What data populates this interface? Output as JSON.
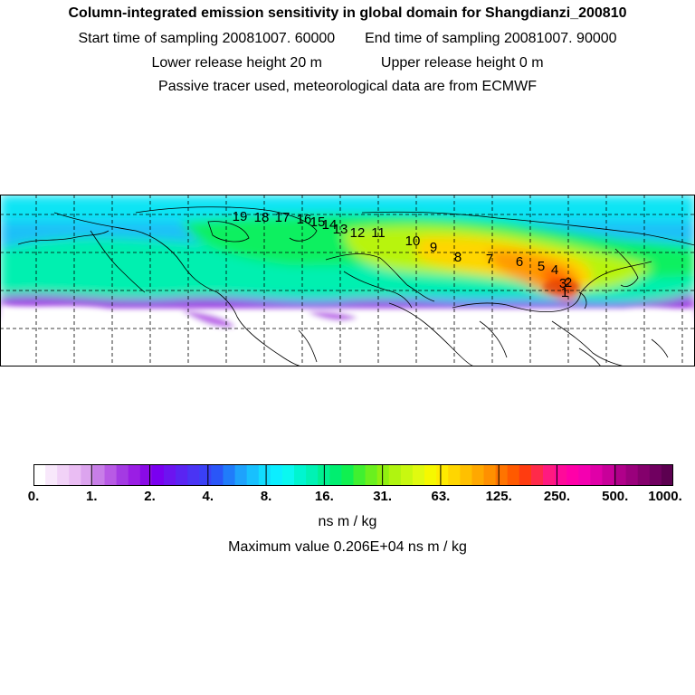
{
  "header": {
    "title": "Column-integrated emission sensitivity in global domain for Shangdianzi_200810",
    "start_label": "Start time of sampling 20081007. 60000",
    "end_label": "End time of sampling 20081007. 90000",
    "lower_label": "Lower release height   20 m",
    "upper_label": "Upper release height    0 m",
    "info": "Passive tracer used, meteorological data are from ECMWF"
  },
  "map": {
    "trajectory_labels": [
      "1",
      "2",
      "3",
      "4",
      "5",
      "6",
      "7",
      "8",
      "9",
      "10",
      "11",
      "12",
      "13",
      "14",
      "15",
      "16",
      "17",
      "18",
      "19"
    ]
  },
  "colorbar": {
    "colors": [
      "#ffffff",
      "#f8e8fb",
      "#f1d2f7",
      "#eabdf3",
      "#dca4ee",
      "#c87ee8",
      "#b85ae5",
      "#a43ae3",
      "#9a1ee4",
      "#8a0ae6",
      "#7a00f0",
      "#6c14f0",
      "#5a24f2",
      "#4a34f4",
      "#3a40f6",
      "#2a56f8",
      "#207cfa",
      "#1ea2fc",
      "#18c0fe",
      "#12dcfe",
      "#0ceeff",
      "#0af8f0",
      "#00f5d0",
      "#00f2b4",
      "#00f090",
      "#00ee70",
      "#10f050",
      "#40f030",
      "#6af01e",
      "#90f010",
      "#b0f410",
      "#c8f810",
      "#e0fa10",
      "#f6f800",
      "#ffea00",
      "#ffd600",
      "#ffc000",
      "#ffa800",
      "#ff9000",
      "#ff7400",
      "#ff5a00",
      "#ff3c10",
      "#ff2a4a",
      "#ff1a80",
      "#ff0a9a",
      "#ff00a8",
      "#f400b0",
      "#e000a8",
      "#c8009a",
      "#b0008a",
      "#9a007c",
      "#84006c",
      "#700060",
      "#5c0050"
    ],
    "ticks": [
      "0.",
      "1.",
      "2.",
      "4.",
      "8.",
      "16.",
      "31.",
      "63.",
      "125.",
      "250.",
      "500.",
      "1000."
    ],
    "unit": "ns m / kg",
    "max_value_label": "Maximum value  0.206E+04 ns m / kg"
  }
}
